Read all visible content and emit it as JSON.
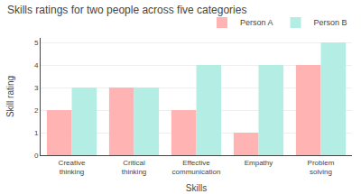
{
  "chart_data": {
    "type": "bar",
    "title": "Skills ratings for two people across five categories",
    "xlabel": "Skills",
    "ylabel": "Skill rating",
    "categories": [
      "Creative\nthinking",
      "Critical\nthinking",
      "Effective\ncommunication",
      "Empathy",
      "Problem\nsolving"
    ],
    "series": [
      {
        "name": "Person A",
        "color": "#ffb3b3",
        "values": [
          2,
          3,
          2,
          1,
          4
        ]
      },
      {
        "name": "Person B",
        "color": "#b3ede3",
        "values": [
          3,
          3,
          4,
          4,
          5
        ]
      }
    ],
    "ylim": [
      0,
      5.2
    ],
    "yticks": [
      0,
      1,
      2,
      3,
      4,
      5
    ],
    "grid": true,
    "legend": "top"
  }
}
